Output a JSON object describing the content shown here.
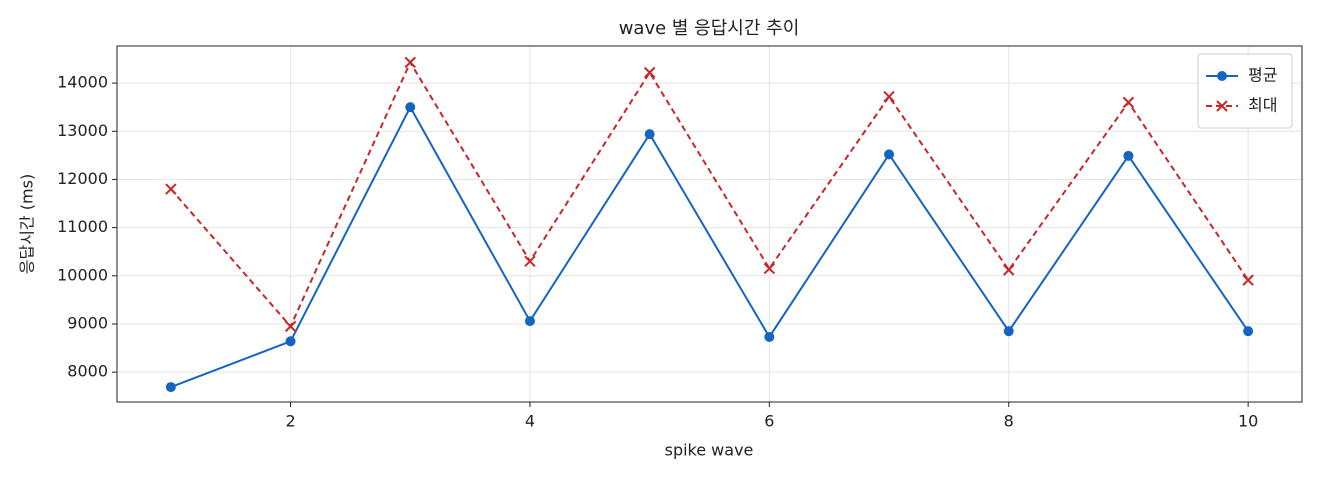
{
  "chart_data": {
    "type": "line",
    "title": "wave 별 응답시간 추이",
    "xlabel": "spike wave",
    "ylabel": "응답시간 (ms)",
    "x": [
      1,
      2,
      3,
      4,
      5,
      6,
      7,
      8,
      9,
      10
    ],
    "series": [
      {
        "name": "평균",
        "color": "#1565c0",
        "linestyle": "solid",
        "marker": "circle",
        "values": [
          7690,
          8640,
          13500,
          9060,
          12940,
          8730,
          12520,
          8850,
          12490,
          8850
        ]
      },
      {
        "name": "최대",
        "color": "#c62828",
        "linestyle": "dashed",
        "marker": "x",
        "values": [
          11800,
          8950,
          14430,
          10300,
          14220,
          10150,
          13720,
          10120,
          13600,
          9910
        ]
      }
    ],
    "xlim": [
      0.55,
      10.45
    ],
    "xticks": [
      2,
      4,
      6,
      8,
      10
    ],
    "ylim": [
      7380,
      14770
    ],
    "yticks": [
      8000,
      9000,
      10000,
      11000,
      12000,
      13000,
      14000
    ],
    "grid": true,
    "legend": "upper right"
  }
}
